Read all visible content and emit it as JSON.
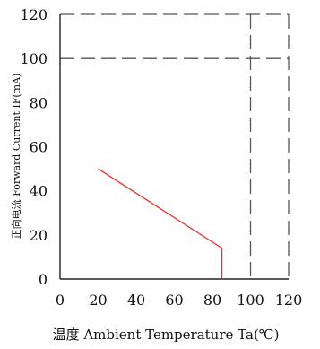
{
  "chart_data": {
    "type": "line",
    "xlabel": "温度 Ambient Temperature Ta(℃)",
    "ylabel": "正向电流 Forward Current IF(mA)",
    "xlim": [
      0,
      120
    ],
    "ylim": [
      0,
      120
    ],
    "x_ticks": [
      "0",
      "20",
      "40",
      "60",
      "80",
      "100",
      "120"
    ],
    "y_ticks": [
      "0",
      "20",
      "40",
      "60",
      "80",
      "100",
      "120"
    ],
    "reference_lines": {
      "horizontal_at": [
        100,
        120
      ],
      "vertical_at": [
        100,
        120
      ],
      "style": "dashed"
    },
    "series": [
      {
        "color": "#e8352b",
        "points": [
          [
            20,
            50
          ],
          [
            85,
            14
          ],
          [
            85,
            0
          ]
        ]
      }
    ],
    "grid": false,
    "legend": "none"
  }
}
